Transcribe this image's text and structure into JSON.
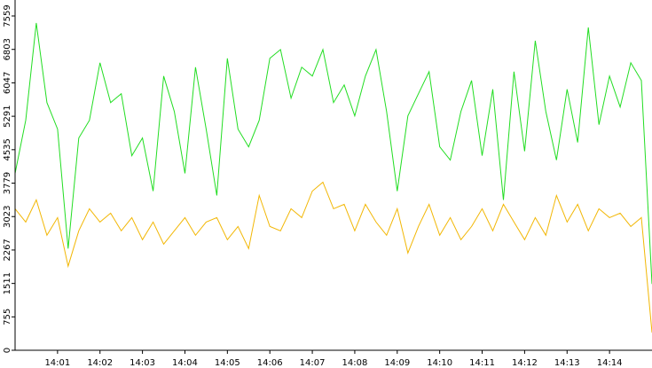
{
  "chart_data": {
    "type": "line",
    "x": [
      "14:00:00",
      "14:00:15",
      "14:00:30",
      "14:00:45",
      "14:01:00",
      "14:01:15",
      "14:01:30",
      "14:01:45",
      "14:02:00",
      "14:02:15",
      "14:02:30",
      "14:02:45",
      "14:03:00",
      "14:03:15",
      "14:03:30",
      "14:03:45",
      "14:04:00",
      "14:04:15",
      "14:04:30",
      "14:04:45",
      "14:05:00",
      "14:05:15",
      "14:05:30",
      "14:05:45",
      "14:06:00",
      "14:06:15",
      "14:06:30",
      "14:06:45",
      "14:07:00",
      "14:07:15",
      "14:07:30",
      "14:07:45",
      "14:08:00",
      "14:08:15",
      "14:08:30",
      "14:08:45",
      "14:09:00",
      "14:09:15",
      "14:09:30",
      "14:09:45",
      "14:10:00",
      "14:10:15",
      "14:10:30",
      "14:10:45",
      "14:11:00",
      "14:11:15",
      "14:11:30",
      "14:11:45",
      "14:12:00",
      "14:12:15",
      "14:12:30",
      "14:12:45",
      "14:13:00",
      "14:13:15",
      "14:13:30",
      "14:13:45",
      "14:14:00",
      "14:14:15",
      "14:14:30",
      "14:14:45",
      "14:15:00"
    ],
    "series": [
      {
        "color": "#22dd22",
        "values": [
          4000,
          5200,
          7400,
          5600,
          5000,
          2300,
          4800,
          5200,
          6500,
          5600,
          5800,
          4400,
          4800,
          3600,
          6200,
          5400,
          4000,
          6400,
          5000,
          3500,
          6600,
          5000,
          4600,
          5200,
          6600,
          6800,
          5700,
          6400,
          6200,
          6800,
          5600,
          6000,
          5300,
          6200,
          6800,
          5400,
          3600,
          5300,
          5800,
          6300,
          4600,
          4300,
          5400,
          6100,
          4400,
          5900,
          3400,
          6300,
          4500,
          7000,
          5400,
          4300,
          5900,
          4700,
          7300,
          5100,
          6200,
          5500,
          6500,
          6100,
          1500
        ]
      },
      {
        "color": "#f2b705",
        "values": [
          3200,
          2900,
          3400,
          2600,
          3000,
          1900,
          2700,
          3200,
          2900,
          3100,
          2700,
          3000,
          2500,
          2900,
          2400,
          2700,
          3000,
          2600,
          2900,
          3000,
          2500,
          2800,
          2300,
          3500,
          2800,
          2700,
          3200,
          3000,
          3600,
          3800,
          3200,
          3300,
          2700,
          3300,
          2900,
          2600,
          3200,
          2200,
          2800,
          3300,
          2600,
          3000,
          2500,
          2800,
          3200,
          2700,
          3300,
          2900,
          2500,
          3000,
          2600,
          3500,
          2900,
          3300,
          2700,
          3200,
          3000,
          3100,
          2800,
          3000,
          400
        ]
      }
    ],
    "xlim": [
      "14:00",
      "14:15"
    ],
    "xticks": [
      "14:01",
      "14:02",
      "14:03",
      "14:04",
      "14:05",
      "14:06",
      "14:07",
      "14:08",
      "14:09",
      "14:10",
      "14:11",
      "14:12",
      "14:13",
      "14:14"
    ],
    "ylim": [
      0,
      7900
    ],
    "yticks": [
      0,
      755,
      1511,
      2267,
      3023,
      3779,
      4535,
      5291,
      6047,
      6803,
      7559
    ]
  }
}
